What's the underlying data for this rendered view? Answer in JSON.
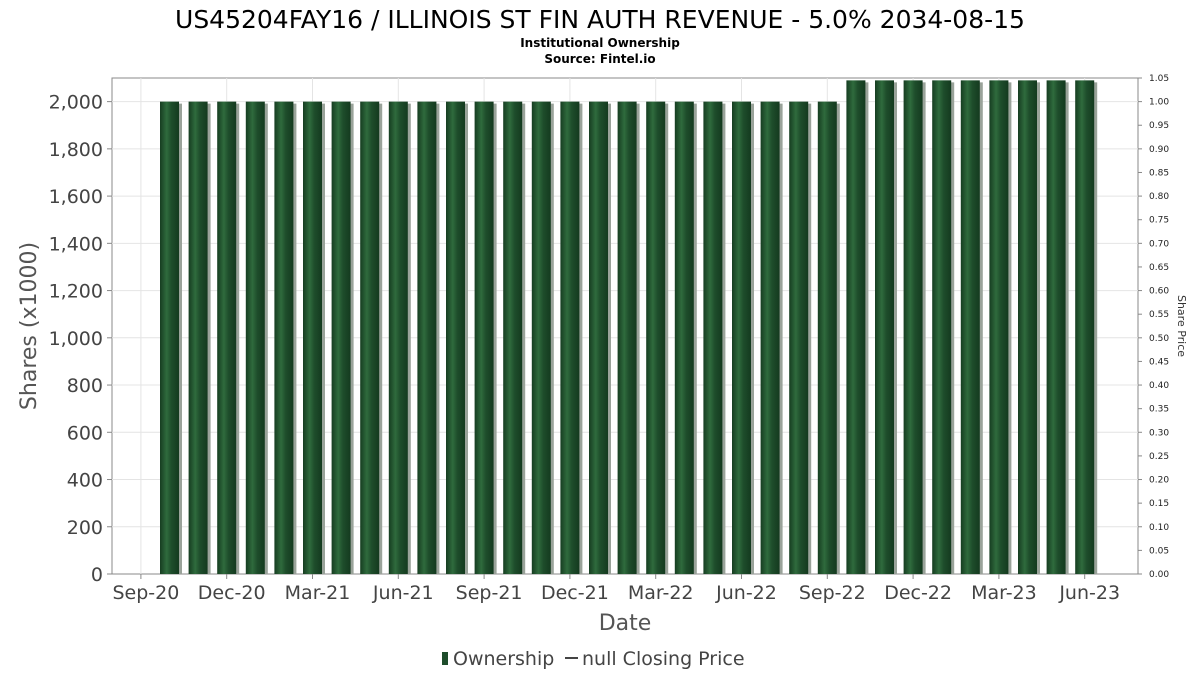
{
  "header": {
    "title": "US45204FAY16 / ILLINOIS ST FIN AUTH REVENUE - 5.0% 2034-08-15",
    "subtitle": "Institutional Ownership",
    "source": "Source: Fintel.io"
  },
  "legend": {
    "ownership_label": "Ownership",
    "price_label": "null Closing Price"
  },
  "colors": {
    "bar": "#1e4d2b",
    "bar_highlight": "#2f6b3d",
    "bar_shadow": "#9aa39a",
    "grid": "#e4e4e4",
    "axis": "#888888"
  },
  "chart_data": {
    "type": "bar",
    "xlabel": "Date",
    "ylabel": "Shares (x1000)",
    "y2label": "Share Price",
    "ylim": [
      0,
      2100
    ],
    "y_ticks": [
      0,
      200,
      400,
      600,
      800,
      1000,
      1200,
      1400,
      1600,
      1800,
      2000
    ],
    "y_tick_labels": [
      "0",
      "200",
      "400",
      "600",
      "800",
      "1,000",
      "1,200",
      "1,400",
      "1,600",
      "1,800",
      "2,000"
    ],
    "y2lim": [
      0.0,
      1.05
    ],
    "y2_tick_labels": [
      "0.00",
      "0.05",
      "0.10",
      "0.15",
      "0.20",
      "0.25",
      "0.30",
      "0.35",
      "0.40",
      "0.45",
      "0.50",
      "0.55",
      "0.60",
      "0.65",
      "0.70",
      "0.75",
      "0.80",
      "0.85",
      "0.90",
      "0.95",
      "1.00",
      "1.05"
    ],
    "x_tick_labels": [
      "Sep-20",
      "Dec-20",
      "Mar-21",
      "Jun-21",
      "Sep-21",
      "Dec-21",
      "Mar-22",
      "Jun-22",
      "Sep-22",
      "Dec-22",
      "Mar-23",
      "Jun-23"
    ],
    "grid": true,
    "legend_position": "bottom",
    "series": [
      {
        "name": "Ownership",
        "values": [
          2000,
          2000,
          2000,
          2000,
          2000,
          2000,
          2000,
          2000,
          2000,
          2000,
          2000,
          2000,
          2000,
          2000,
          2000,
          2000,
          2000,
          2000,
          2000,
          2000,
          2000,
          2000,
          2000,
          2000,
          2090,
          2090,
          2090,
          2090,
          2090,
          2090,
          2090,
          2090,
          2090
        ]
      }
    ]
  }
}
